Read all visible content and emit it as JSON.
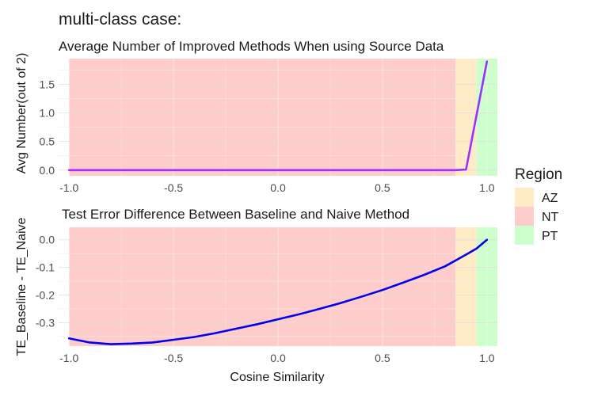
{
  "figure": {
    "title": "multi-class case:",
    "xlabel": "Cosine Similarity"
  },
  "legend": {
    "title": "Region",
    "position": "right",
    "items": [
      {
        "label": "AZ",
        "color": "#FFEBC6"
      },
      {
        "label": "NT",
        "color": "#FFCCCC"
      },
      {
        "label": "PT",
        "color": "#CCFFCC"
      }
    ]
  },
  "chart_data": [
    {
      "type": "line",
      "title": "Average Number of Improved Methods When using Source Data",
      "xlabel": "",
      "ylabel": "Avg Number(out of 2)",
      "xlim": [
        -1.05,
        1.05
      ],
      "ylim": [
        -0.1,
        1.95
      ],
      "xticks": [
        -1.0,
        -0.5,
        0.0,
        0.5,
        1.0
      ],
      "xtick_labels": [
        "-1.0",
        "-0.5",
        "0.0",
        "0.5",
        "1.0"
      ],
      "yticks": [
        0.0,
        0.5,
        1.0,
        1.5
      ],
      "ytick_labels": [
        "0.0",
        "0.5",
        "1.0",
        "1.5"
      ],
      "grid": true,
      "line_color": "#9B30FF",
      "regions": [
        {
          "label": "NT",
          "x0": -1.0,
          "x1": 0.85
        },
        {
          "label": "AZ",
          "x0": 0.85,
          "x1": 0.95
        },
        {
          "label": "PT",
          "x0": 0.95,
          "x1": 1.05
        }
      ],
      "x": [
        -1.0,
        -0.8,
        -0.6,
        -0.4,
        -0.2,
        0.0,
        0.2,
        0.4,
        0.6,
        0.8,
        0.85,
        0.9,
        1.0
      ],
      "y": [
        0,
        0,
        0,
        0,
        0,
        0,
        0,
        0,
        0,
        0,
        0,
        0.01,
        1.9
      ]
    },
    {
      "type": "line",
      "title": "Test Error Difference Between Baseline and Naive Method",
      "xlabel": "Cosine Similarity",
      "ylabel": "TE_Baseline - TE_Naive",
      "xlim": [
        -1.05,
        1.05
      ],
      "ylim": [
        -0.385,
        0.045
      ],
      "xticks": [
        -1.0,
        -0.5,
        0.0,
        0.5,
        1.0
      ],
      "xtick_labels": [
        "-1.0",
        "-0.5",
        "0.0",
        "0.5",
        "1.0"
      ],
      "yticks": [
        -0.3,
        -0.2,
        -0.1,
        0.0
      ],
      "ytick_labels": [
        "-0.3",
        "-0.2",
        "-0.1",
        "0.0"
      ],
      "grid": true,
      "line_color": "#0000EE",
      "regions": [
        {
          "label": "NT",
          "x0": -1.0,
          "x1": 0.85
        },
        {
          "label": "AZ",
          "x0": 0.85,
          "x1": 0.95
        },
        {
          "label": "PT",
          "x0": 0.95,
          "x1": 1.05
        }
      ],
      "x": [
        -1.0,
        -0.9,
        -0.8,
        -0.7,
        -0.6,
        -0.5,
        -0.4,
        -0.3,
        -0.2,
        -0.1,
        0.0,
        0.1,
        0.2,
        0.3,
        0.4,
        0.5,
        0.6,
        0.7,
        0.8,
        0.85,
        0.9,
        0.95,
        1.0
      ],
      "y": [
        -0.357,
        -0.372,
        -0.378,
        -0.376,
        -0.372,
        -0.362,
        -0.352,
        -0.338,
        -0.322,
        -0.306,
        -0.288,
        -0.27,
        -0.25,
        -0.229,
        -0.206,
        -0.182,
        -0.155,
        -0.127,
        -0.096,
        -0.075,
        -0.054,
        -0.032,
        0.0
      ]
    }
  ]
}
